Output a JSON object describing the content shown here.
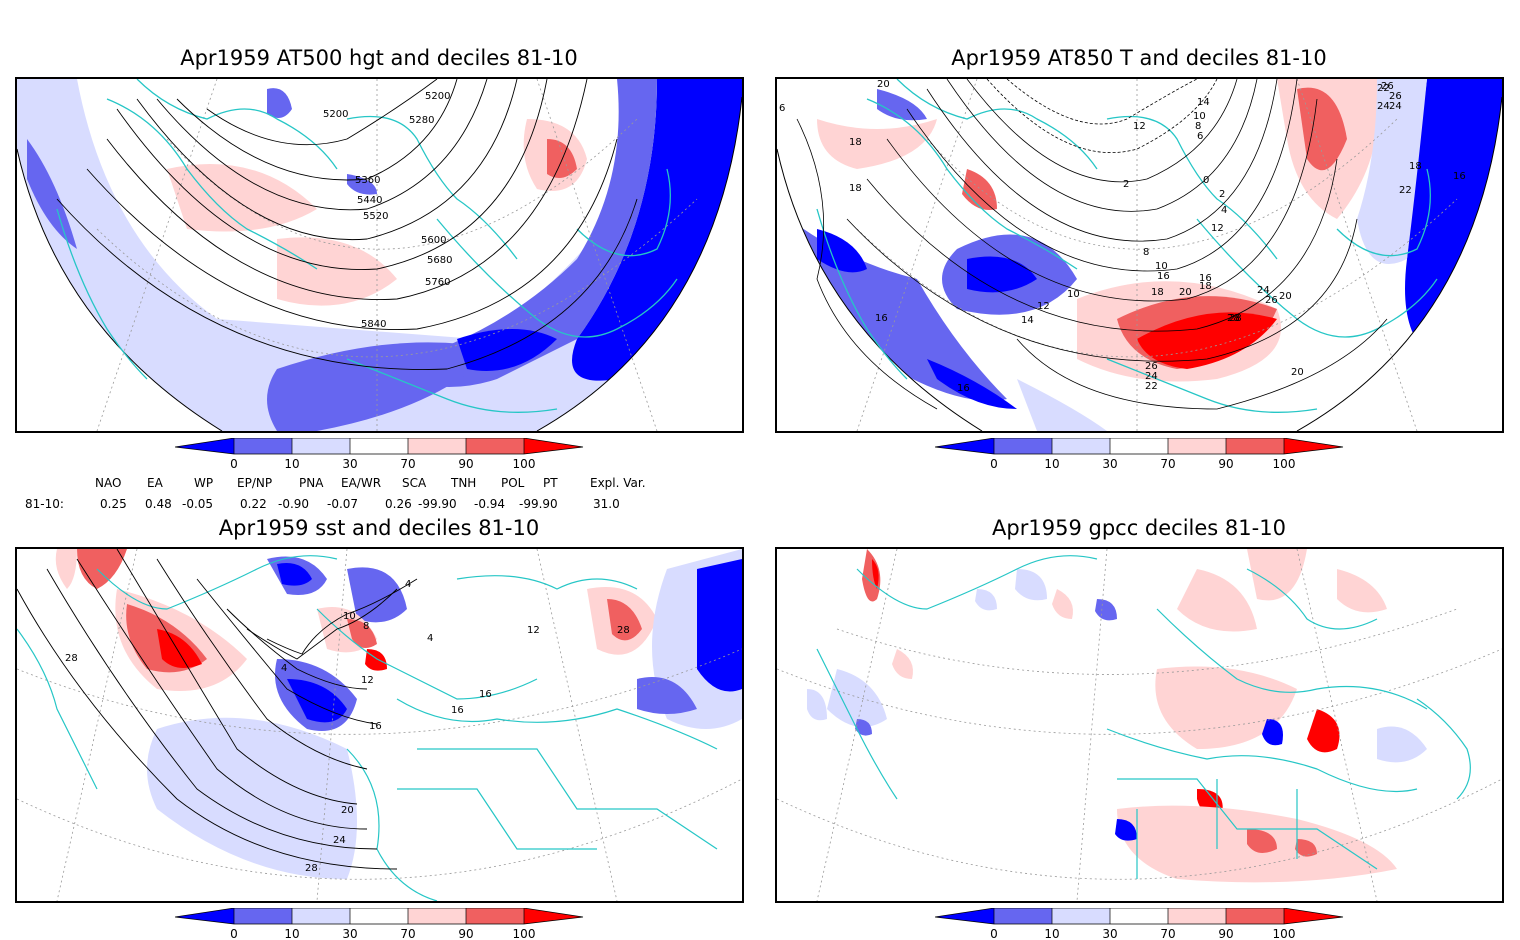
{
  "panels": {
    "tl": {
      "title": "Apr1959 AT500 hgt and deciles 81-10",
      "contour_labels": [
        "5200",
        "5200",
        "5280",
        "5360",
        "5440",
        "5520",
        "5600",
        "5680",
        "5760",
        "5840"
      ]
    },
    "tr": {
      "title": "Apr1959 AT850 T and deciles 81-10",
      "contour_labels": [
        "6",
        "20",
        "18",
        "18",
        "16",
        "16",
        "12",
        "10",
        "14",
        "2",
        "0",
        "2",
        "4",
        "6",
        "8",
        "10",
        "12",
        "14",
        "16",
        "18",
        "20",
        "22",
        "24",
        "26",
        "28",
        "26",
        "24",
        "22",
        "20",
        "16",
        "18",
        "22",
        "24",
        "26",
        "8",
        "10",
        "12",
        "16",
        "18",
        "20",
        "24",
        "26",
        "28"
      ]
    },
    "bl": {
      "title": "Apr1959 sst and deciles 81-10",
      "contour_labels": [
        "28",
        "4",
        "4",
        "8",
        "10",
        "4",
        "12",
        "16",
        "16",
        "16",
        "20",
        "24",
        "28",
        "28",
        "12"
      ]
    },
    "br": {
      "title": "Apr1959 gpcc deciles 81-10"
    }
  },
  "colorbar": {
    "ticks": [
      "0",
      "10",
      "30",
      "70",
      "90",
      "100"
    ],
    "colors": [
      "#0000ff",
      "#6666f0",
      "#d8dcff",
      "#ffffff",
      "#ffd4d4",
      "#f06060",
      "#ff0000"
    ]
  },
  "indices": {
    "headers": [
      "NAO",
      "EA",
      "WP",
      "EP/NP",
      "PNA",
      "EA/WR",
      "SCA",
      "TNH",
      "POL",
      "PT",
      "Expl. Var."
    ],
    "row_label": "81-10:",
    "values": [
      "0.25",
      "0.48",
      "-0.05",
      "0.22",
      "-0.90",
      "-0.07",
      "0.26",
      "-99.90",
      "-0.94",
      "-99.90",
      "31.0"
    ]
  },
  "map_colors": {
    "coast": "#26c6c6",
    "grid": "#9a9a9a",
    "contour": "#000000"
  }
}
